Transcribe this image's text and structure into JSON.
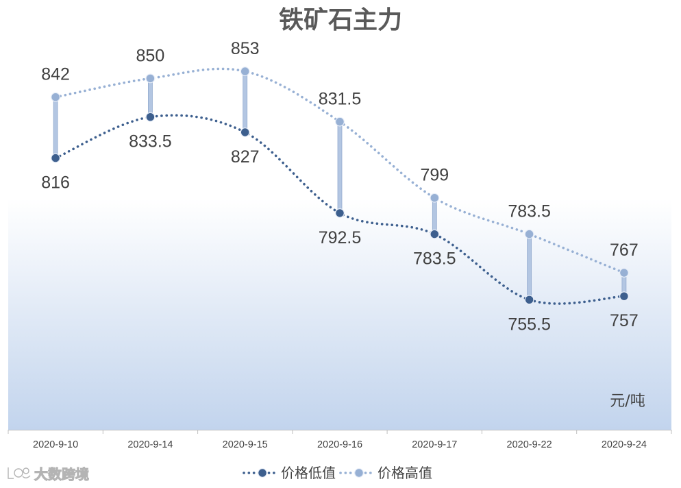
{
  "chart_data": {
    "type": "line",
    "title": "铁矿石主力",
    "unit": "元/吨",
    "categories": [
      "2020-9-10",
      "2020-9-14",
      "2020-9-15",
      "2020-9-16",
      "2020-9-17",
      "2020-9-22",
      "2020-9-24"
    ],
    "series": [
      {
        "name": "价格低值",
        "values": [
          816,
          833.5,
          827,
          792.5,
          783.5,
          755.5,
          757
        ],
        "color": "#3d5f8e"
      },
      {
        "name": "价格高值",
        "values": [
          842,
          850,
          853,
          831.5,
          799,
          783.5,
          767
        ],
        "color": "#97b0d4"
      }
    ],
    "ylim": [
      700,
      870
    ],
    "smooth": true,
    "markers": true,
    "data_labels": true,
    "high_low_lines": true,
    "high_low_line_color": "#b3c6e2",
    "grid": false,
    "legend": "bottom"
  },
  "watermark": {
    "text": "大数跨境"
  }
}
